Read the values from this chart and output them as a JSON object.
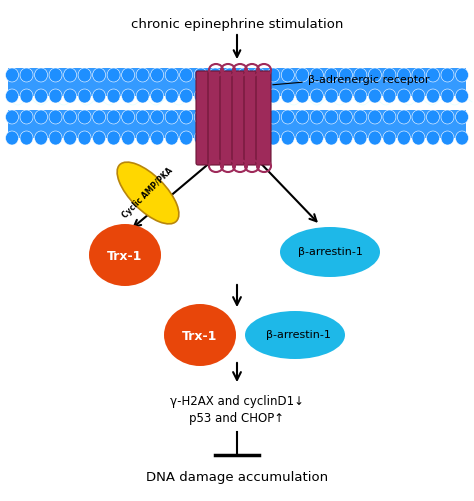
{
  "title": "chronic epinephrine stimulation",
  "bg_color": "#ffffff",
  "membrane_color": "#1e8fff",
  "membrane_oval_color": "#1e8fff",
  "receptor_color": "#9e2a5a",
  "receptor_label": "β-adrenergic receptor",
  "camp_label": "Cyclic AMP/PKA",
  "camp_color": "#FFD700",
  "trx_label": "Trx-1",
  "trx_color": "#E8460A",
  "arrestin_label": "β-arrestin-1",
  "arrestin_color": "#1eb8e8",
  "text_color": "#000000",
  "downstream_text1": "γ-H2AX and cyclinD1↓",
  "downstream_text2": "p53 and CHOP↑",
  "final_label": "DNA damage accumulation"
}
